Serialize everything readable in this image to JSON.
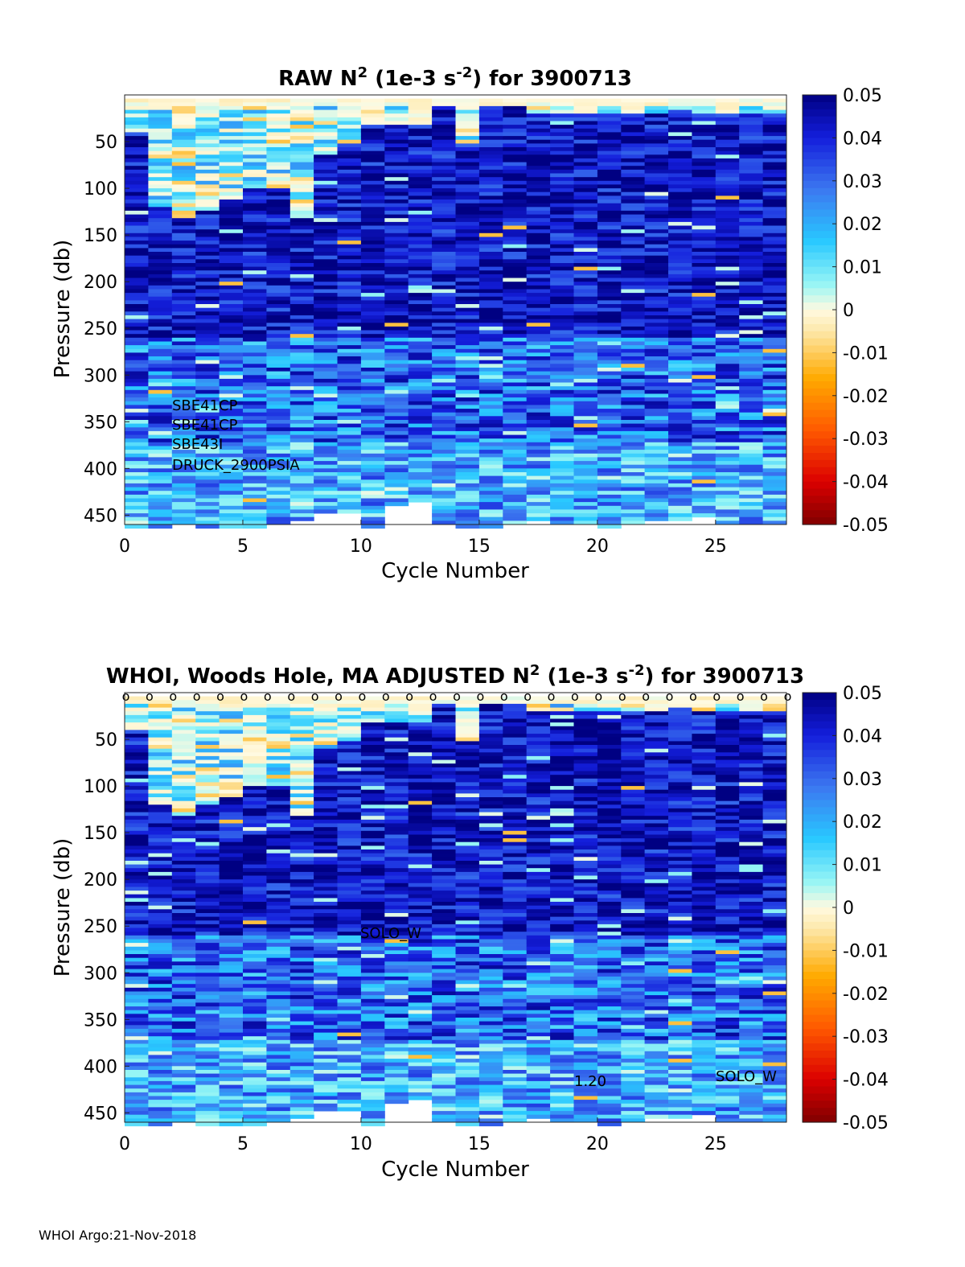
{
  "chart_data": [
    {
      "type": "heatmap",
      "title": "RAW N² (1e-3 s⁻²) for 3900713",
      "title_parts": {
        "pre": "RAW N",
        "sup1": "2",
        "mid": " (1e-3 s",
        "sup2": "-2",
        "post": ") for 3900713"
      },
      "xlabel": "Cycle Number",
      "ylabel": "Pressure (db)",
      "xlim": [
        0,
        28
      ],
      "ylim": [
        460,
        0
      ],
      "x_ticks": [
        "0",
        "5",
        "10",
        "15",
        "20",
        "25"
      ],
      "y_ticks": [
        "50",
        "100",
        "150",
        "200",
        "250",
        "300",
        "350",
        "400",
        "450"
      ],
      "colorbar": {
        "clim": [
          -0.05,
          0.05
        ],
        "ticks": [
          "0.05",
          "0.04",
          "0.03",
          "0.02",
          "0.01",
          "0",
          "-0.01",
          "-0.02",
          "-0.03",
          "-0.04",
          "-0.05"
        ]
      },
      "annotations": [
        "SBE41CP",
        "SBE41CP",
        "SBE43I",
        "DRUCK_2900PSIA"
      ]
    },
    {
      "type": "heatmap",
      "title": "WHOI, Woods Hole, MA  ADJUSTED N² (1e-3 s⁻²) for 3900713",
      "title_parts": {
        "pre": "WHOI, Woods Hole, MA  ADJUSTED N",
        "sup1": "2",
        "mid": " (1e-3 s",
        "sup2": "-2",
        "post": ") for 3900713"
      },
      "xlabel": "Cycle Number",
      "ylabel": "Pressure (db)",
      "xlim": [
        0,
        28
      ],
      "ylim": [
        460,
        0
      ],
      "x_ticks": [
        "0",
        "5",
        "10",
        "15",
        "20",
        "25"
      ],
      "y_ticks": [
        "50",
        "100",
        "150",
        "200",
        "250",
        "300",
        "350",
        "400",
        "450"
      ],
      "colorbar": {
        "clim": [
          -0.05,
          0.05
        ],
        "ticks": [
          "0.05",
          "0.04",
          "0.03",
          "0.02",
          "0.01",
          "0",
          "-0.01",
          "-0.02",
          "-0.03",
          "-0.04",
          "-0.05"
        ]
      },
      "qc_marker": "o",
      "annotations": [
        "SOLO_W",
        "1.20",
        "SOLO_W"
      ]
    }
  ],
  "data_notes": {
    "cycles": 28,
    "surface_positive_depth_by_cycle": [
      40,
      120,
      130,
      120,
      110,
      100,
      100,
      130,
      60,
      50,
      30,
      30,
      30,
      10,
      50,
      8,
      6,
      20,
      20,
      20,
      20,
      20,
      20,
      15,
      20,
      20,
      20,
      20
    ],
    "max_depth_by_cycle": [
      462,
      462,
      460,
      462,
      462,
      462,
      460,
      455,
      445,
      445,
      462,
      438,
      435,
      460,
      462,
      462,
      460,
      455,
      458,
      460,
      462,
      460,
      455,
      455,
      452,
      458,
      458,
      458
    ]
  },
  "footer": "WHOI Argo:21-Nov-2018"
}
